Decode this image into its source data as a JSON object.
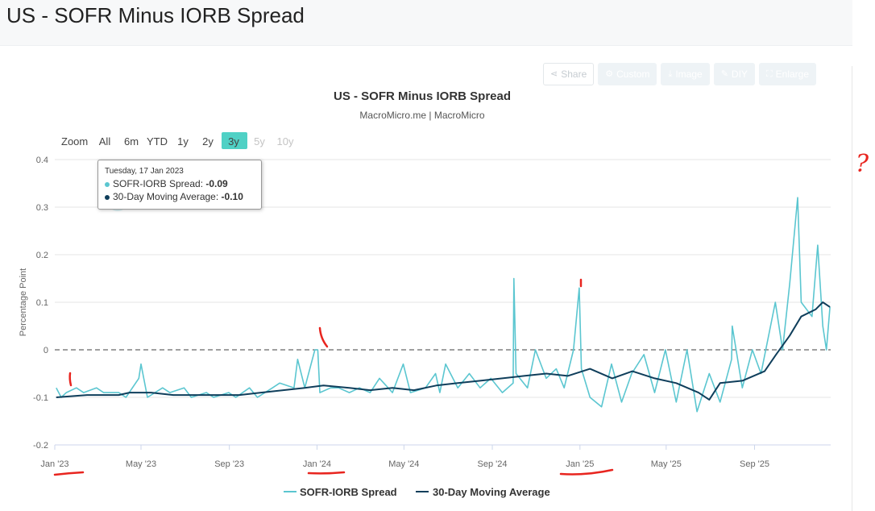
{
  "page": {
    "title": "US - SOFR Minus IORB Spread"
  },
  "toolbar": {
    "buttons": [
      {
        "label": "Share",
        "icon": "share-icon",
        "glyph": "⋖"
      },
      {
        "label": "Custom",
        "icon": "gear-icon",
        "glyph": "⚙"
      },
      {
        "label": "Image",
        "icon": "download-icon",
        "glyph": "⤓"
      },
      {
        "label": "DIY",
        "icon": "pencil-icon",
        "glyph": "✎"
      },
      {
        "label": "Enlarge",
        "icon": "expand-icon",
        "glyph": "⛶"
      }
    ]
  },
  "zoom": {
    "label": "Zoom",
    "options": [
      {
        "label": "All",
        "state": "normal"
      },
      {
        "label": "6m",
        "state": "normal"
      },
      {
        "label": "YTD",
        "state": "normal"
      },
      {
        "label": "1y",
        "state": "normal"
      },
      {
        "label": "2y",
        "state": "normal"
      },
      {
        "label": "3y",
        "state": "active"
      },
      {
        "label": "5y",
        "state": "disabled"
      },
      {
        "label": "10y",
        "state": "disabled"
      }
    ]
  },
  "tooltip": {
    "date": "Tuesday, 17 Jan 2023",
    "rows": [
      {
        "label": "SOFR-IORB Spread: ",
        "value": "-0.09",
        "color": "#5bc6d0"
      },
      {
        "label": "30-Day Moving Average: ",
        "value": "-0.10",
        "color": "#0f3e5b"
      }
    ]
  },
  "annotation": {
    "mark": "?"
  },
  "chart_data": {
    "type": "line",
    "title": "US - SOFR Minus IORB Spread",
    "subtitle": "MacroMicro.me | MacroMicro",
    "ylabel": "Percentage Point",
    "xlabel": "",
    "ylim": [
      -0.2,
      0.4
    ],
    "yticks": [
      -0.2,
      -0.1,
      0,
      0.1,
      0.2,
      0.3,
      0.4
    ],
    "ytick_labels": [
      "-0.2",
      "-0.1",
      "0",
      "0.1",
      "0.2",
      "0.3",
      "0.4"
    ],
    "xlim": [
      "2023-01-01",
      "2025-12-16"
    ],
    "xticks": [
      "2023-01-01",
      "2023-05-01",
      "2023-09-01",
      "2024-01-01",
      "2024-05-01",
      "2024-09-01",
      "2025-01-01",
      "2025-05-01",
      "2025-09-01"
    ],
    "xtick_labels": [
      "Jan '23",
      "May '23",
      "Sep '23",
      "Jan '24",
      "May '24",
      "Sep '24",
      "Jan '25",
      "May '25",
      "Sep '25"
    ],
    "reference_line": {
      "y": 0,
      "style": "dashed"
    },
    "grid": "horizontal",
    "legend_position": "bottom-center",
    "series": [
      {
        "name": "SOFR-IORB Spread",
        "color": "#5bc6d0",
        "points": [
          [
            "2023-01-03",
            -0.08
          ],
          [
            "2023-01-10",
            -0.1
          ],
          [
            "2023-01-17",
            -0.09
          ],
          [
            "2023-01-31",
            -0.08
          ],
          [
            "2023-02-10",
            -0.09
          ],
          [
            "2023-02-28",
            -0.08
          ],
          [
            "2023-03-10",
            -0.09
          ],
          [
            "2023-03-31",
            -0.09
          ],
          [
            "2023-04-10",
            -0.1
          ],
          [
            "2023-04-28",
            -0.06
          ],
          [
            "2023-05-01",
            -0.03
          ],
          [
            "2023-05-10",
            -0.1
          ],
          [
            "2023-05-31",
            -0.08
          ],
          [
            "2023-06-10",
            -0.09
          ],
          [
            "2023-06-30",
            -0.08
          ],
          [
            "2023-07-10",
            -0.1
          ],
          [
            "2023-07-31",
            -0.09
          ],
          [
            "2023-08-10",
            -0.1
          ],
          [
            "2023-08-31",
            -0.09
          ],
          [
            "2023-09-10",
            -0.1
          ],
          [
            "2023-09-29",
            -0.08
          ],
          [
            "2023-10-10",
            -0.1
          ],
          [
            "2023-10-31",
            -0.08
          ],
          [
            "2023-11-10",
            -0.07
          ],
          [
            "2023-11-30",
            -0.08
          ],
          [
            "2023-12-05",
            -0.02
          ],
          [
            "2023-12-15",
            -0.08
          ],
          [
            "2023-12-29",
            0.0
          ],
          [
            "2024-01-02",
            0.0
          ],
          [
            "2024-01-05",
            -0.09
          ],
          [
            "2024-01-20",
            -0.08
          ],
          [
            "2024-01-31",
            -0.08
          ],
          [
            "2024-02-15",
            -0.09
          ],
          [
            "2024-02-29",
            -0.08
          ],
          [
            "2024-03-15",
            -0.09
          ],
          [
            "2024-03-28",
            -0.06
          ],
          [
            "2024-04-15",
            -0.09
          ],
          [
            "2024-04-30",
            -0.03
          ],
          [
            "2024-05-10",
            -0.09
          ],
          [
            "2024-05-31",
            -0.08
          ],
          [
            "2024-06-14",
            -0.05
          ],
          [
            "2024-06-20",
            -0.09
          ],
          [
            "2024-06-28",
            -0.03
          ],
          [
            "2024-07-15",
            -0.08
          ],
          [
            "2024-07-31",
            -0.05
          ],
          [
            "2024-08-15",
            -0.08
          ],
          [
            "2024-08-30",
            -0.06
          ],
          [
            "2024-09-15",
            -0.09
          ],
          [
            "2024-09-30",
            -0.07
          ],
          [
            "2024-10-01",
            0.15
          ],
          [
            "2024-10-04",
            -0.05
          ],
          [
            "2024-10-20",
            -0.08
          ],
          [
            "2024-10-31",
            0.0
          ],
          [
            "2024-11-15",
            -0.06
          ],
          [
            "2024-11-29",
            -0.04
          ],
          [
            "2024-12-10",
            -0.08
          ],
          [
            "2024-12-23",
            0.0
          ],
          [
            "2024-12-31",
            0.13
          ],
          [
            "2025-01-03",
            -0.04
          ],
          [
            "2025-01-15",
            -0.1
          ],
          [
            "2025-01-31",
            -0.12
          ],
          [
            "2025-02-14",
            -0.03
          ],
          [
            "2025-02-28",
            -0.11
          ],
          [
            "2025-03-14",
            -0.05
          ],
          [
            "2025-03-31",
            -0.01
          ],
          [
            "2025-04-15",
            -0.09
          ],
          [
            "2025-04-30",
            0.0
          ],
          [
            "2025-05-15",
            -0.11
          ],
          [
            "2025-05-30",
            0.0
          ],
          [
            "2025-06-13",
            -0.13
          ],
          [
            "2025-06-30",
            -0.05
          ],
          [
            "2025-07-15",
            -0.11
          ],
          [
            "2025-07-31",
            -0.02
          ],
          [
            "2025-08-01",
            0.05
          ],
          [
            "2025-08-15",
            -0.08
          ],
          [
            "2025-08-29",
            0.0
          ],
          [
            "2025-09-10",
            -0.05
          ],
          [
            "2025-09-30",
            0.1
          ],
          [
            "2025-10-10",
            0.0
          ],
          [
            "2025-10-20",
            0.14
          ],
          [
            "2025-10-31",
            0.32
          ],
          [
            "2025-11-05",
            0.1
          ],
          [
            "2025-11-20",
            0.07
          ],
          [
            "2025-11-28",
            0.22
          ],
          [
            "2025-12-05",
            0.05
          ],
          [
            "2025-12-10",
            0.0
          ],
          [
            "2025-12-15",
            0.09
          ]
        ]
      },
      {
        "name": "30-Day Moving Average",
        "color": "#0f3e5b",
        "points": [
          [
            "2023-01-03",
            -0.1
          ],
          [
            "2023-02-15",
            -0.095
          ],
          [
            "2023-03-31",
            -0.095
          ],
          [
            "2023-04-15",
            -0.09
          ],
          [
            "2023-05-15",
            -0.09
          ],
          [
            "2023-06-15",
            -0.095
          ],
          [
            "2023-07-15",
            -0.095
          ],
          [
            "2023-08-15",
            -0.095
          ],
          [
            "2023-09-15",
            -0.095
          ],
          [
            "2023-10-15",
            -0.09
          ],
          [
            "2023-11-15",
            -0.085
          ],
          [
            "2023-12-15",
            -0.08
          ],
          [
            "2024-01-10",
            -0.075
          ],
          [
            "2024-02-15",
            -0.08
          ],
          [
            "2024-03-15",
            -0.085
          ],
          [
            "2024-04-15",
            -0.08
          ],
          [
            "2024-05-15",
            -0.085
          ],
          [
            "2024-06-15",
            -0.075
          ],
          [
            "2024-07-15",
            -0.07
          ],
          [
            "2024-08-15",
            -0.065
          ],
          [
            "2024-09-15",
            -0.06
          ],
          [
            "2024-10-15",
            -0.055
          ],
          [
            "2024-11-15",
            -0.05
          ],
          [
            "2024-12-15",
            -0.055
          ],
          [
            "2025-01-15",
            -0.04
          ],
          [
            "2025-02-15",
            -0.06
          ],
          [
            "2025-03-15",
            -0.045
          ],
          [
            "2025-04-15",
            -0.06
          ],
          [
            "2025-05-15",
            -0.07
          ],
          [
            "2025-06-15",
            -0.09
          ],
          [
            "2025-06-30",
            -0.105
          ],
          [
            "2025-07-15",
            -0.07
          ],
          [
            "2025-08-15",
            -0.065
          ],
          [
            "2025-09-15",
            -0.045
          ],
          [
            "2025-10-01",
            -0.01
          ],
          [
            "2025-10-20",
            0.03
          ],
          [
            "2025-11-05",
            0.07
          ],
          [
            "2025-11-25",
            0.085
          ],
          [
            "2025-12-05",
            0.1
          ],
          [
            "2025-12-15",
            0.09
          ]
        ]
      }
    ]
  }
}
